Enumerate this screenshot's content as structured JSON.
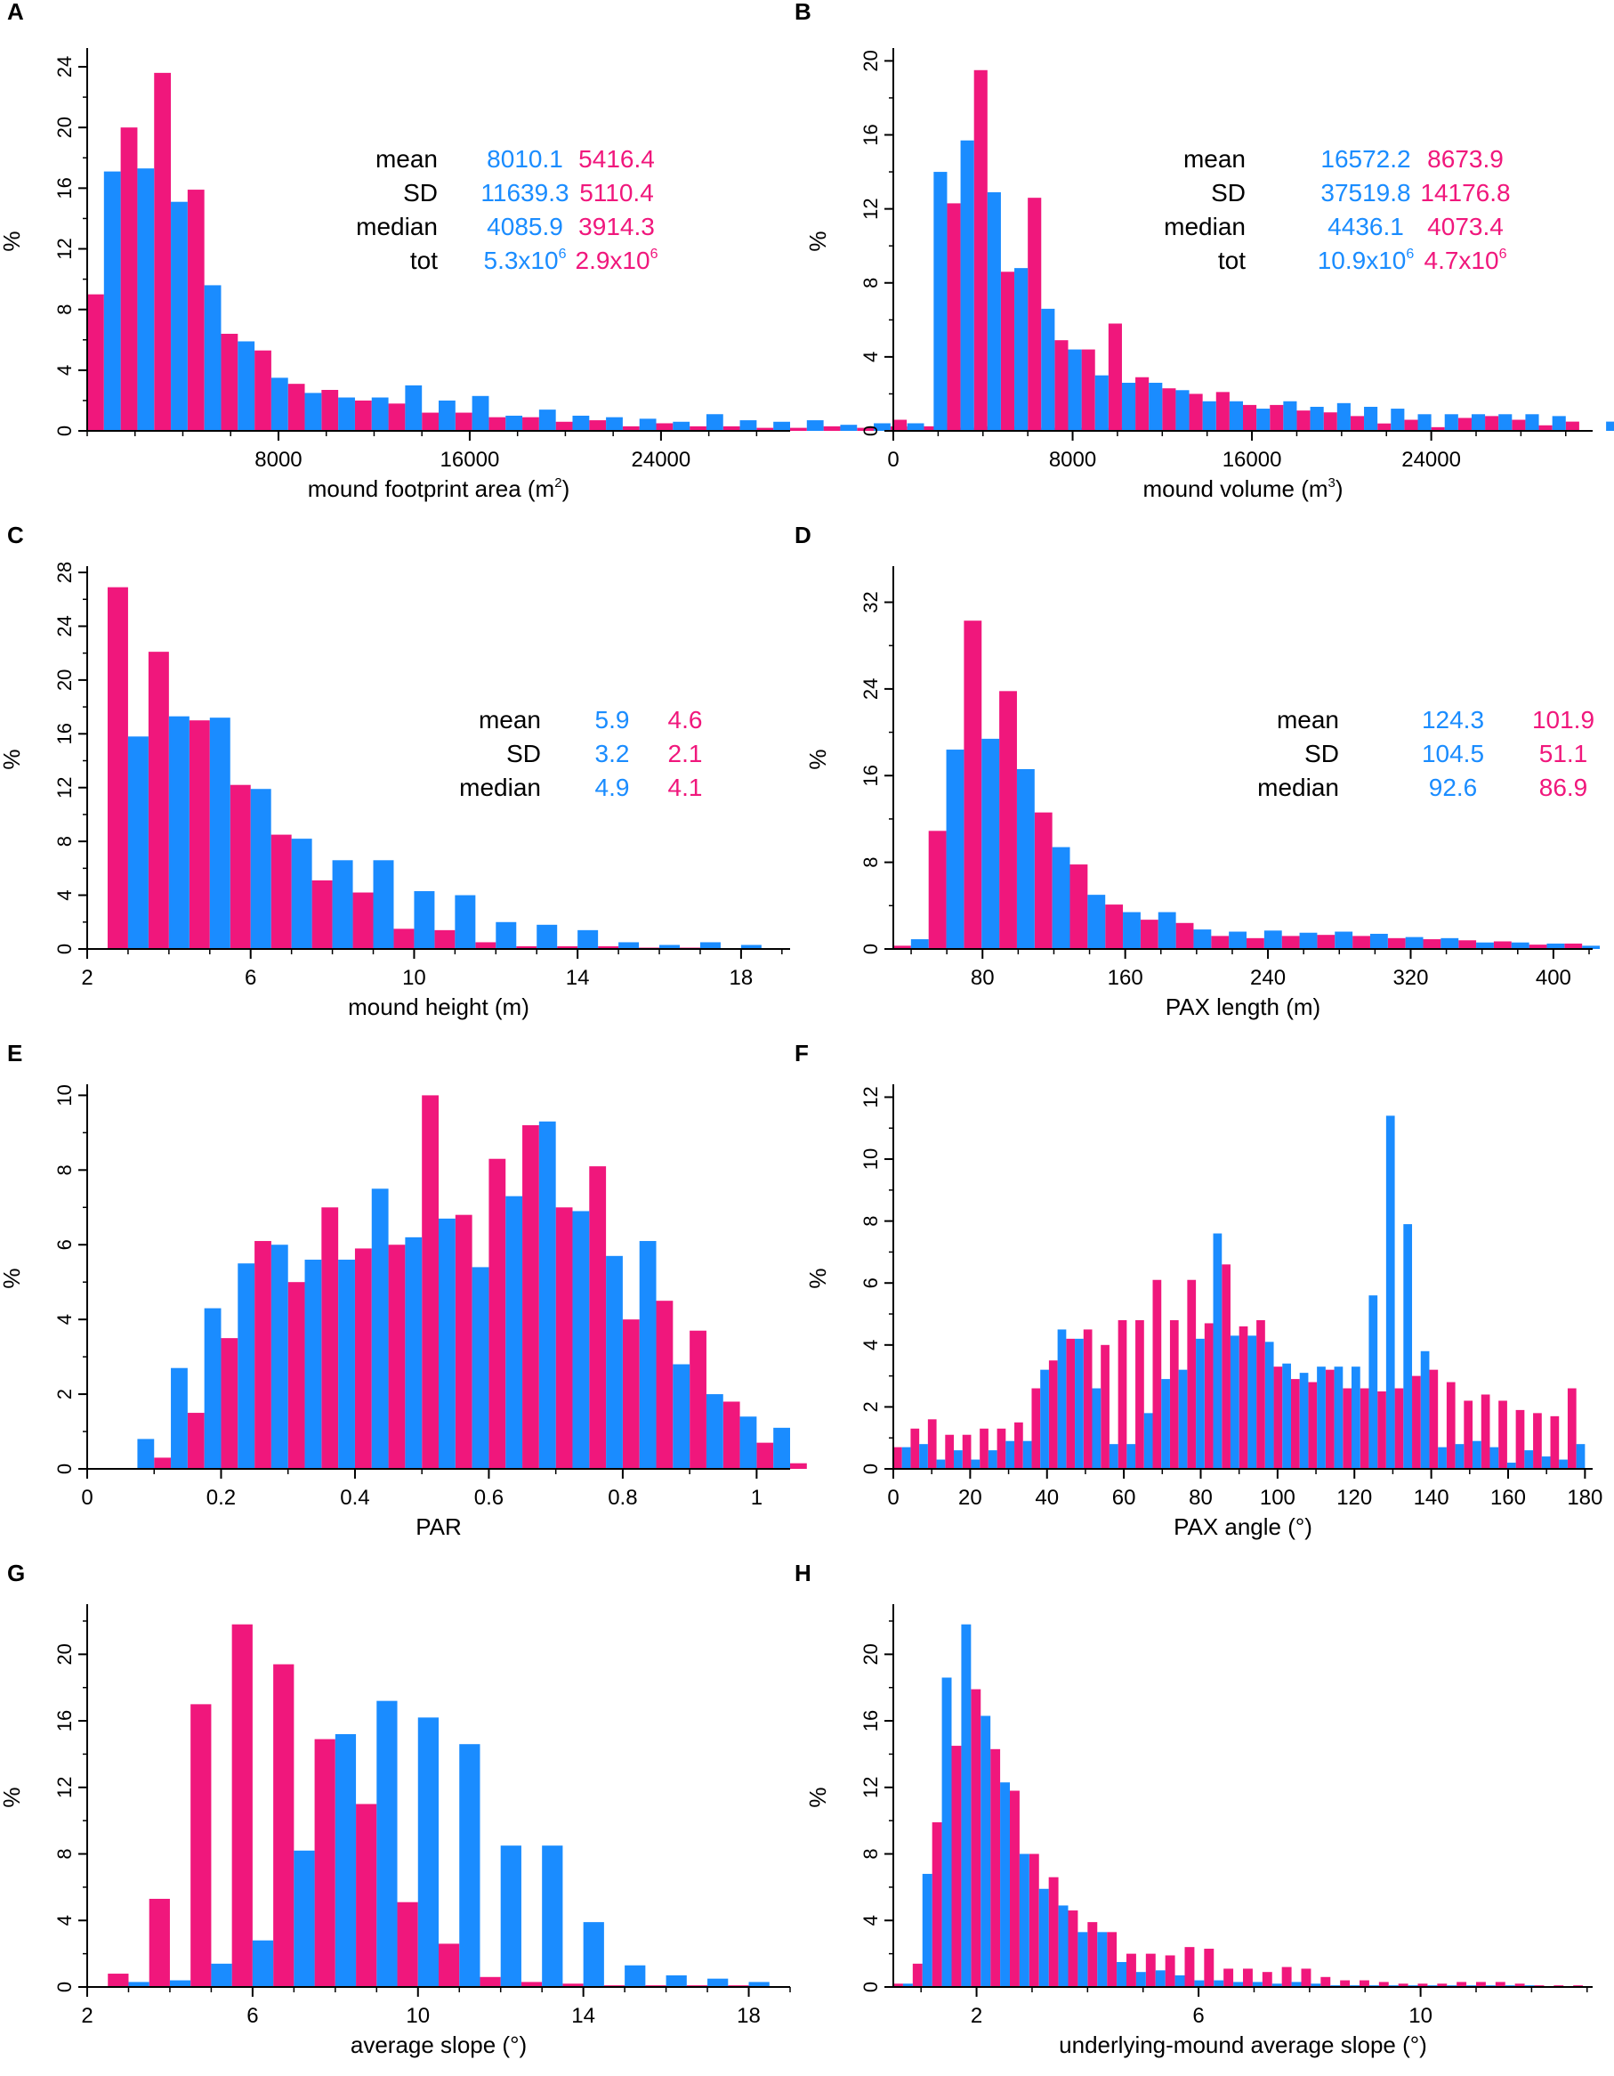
{
  "colors": {
    "blue": "#1a8cff",
    "pink": "#f0177c",
    "axis": "#000000"
  },
  "chart_data": [
    {
      "panel": "A",
      "type": "bar",
      "xlabel": "mound footprint area (m",
      "xlabel_sup": "2",
      "xlabel_end": ")",
      "ylabel": "%",
      "xlim": [
        0,
        29400
      ],
      "ylim": [
        0,
        25
      ],
      "xticks": [
        8000,
        16000,
        24000
      ],
      "xtick_labels": [
        "8000",
        "16000",
        "24000"
      ],
      "xminor": 2000,
      "yticks": [
        0,
        4,
        8,
        12,
        16,
        20,
        24
      ],
      "yminor": 2,
      "bin_start": 0,
      "bin_width": 1400,
      "series": [
        {
          "name": "pink",
          "color": "pink",
          "values": [
            9.0,
            20.0,
            23.6,
            15.9,
            6.4,
            5.3,
            3.1,
            2.7,
            2.0,
            1.8,
            1.2,
            1.2,
            0.9,
            0.9,
            0.6,
            0.7,
            0.3,
            0.5,
            0.3,
            0.3,
            0.2,
            0.2,
            0.3,
            0.2,
            0.3,
            0.3,
            0.2,
            0.1,
            0.1,
            0.1,
            0.1
          ]
        },
        {
          "name": "blue",
          "color": "blue",
          "values": [
            17.1,
            17.3,
            15.1,
            9.6,
            5.9,
            3.5,
            2.5,
            2.2,
            2.2,
            3.0,
            2.0,
            2.3,
            1.0,
            1.4,
            1.0,
            0.9,
            0.8,
            0.6,
            1.1,
            0.7,
            0.6,
            0.7,
            0.4,
            0.5,
            0.5,
            0.5,
            0.3,
            0.3,
            0.2,
            0.2,
            0.2
          ]
        }
      ],
      "stats": {
        "labels": [
          "mean",
          "SD",
          "median",
          "tot"
        ],
        "blue": [
          "8010.1",
          "11639.3",
          "4085.9",
          "5.3x10"
        ],
        "blue_sup": [
          "",
          "",
          "",
          "6"
        ],
        "pink": [
          "5416.4",
          "5110.4",
          "3914.3",
          "2.9x10"
        ],
        "pink_sup": [
          "",
          "",
          "",
          "6"
        ]
      }
    },
    {
      "panel": "B",
      "type": "bar",
      "xlabel": "mound volume (m",
      "xlabel_sup": "3",
      "xlabel_end": ")",
      "ylabel": "%",
      "xlim": [
        0,
        31200
      ],
      "ylim": [
        0,
        20.5
      ],
      "xticks": [
        0,
        8000,
        16000,
        24000
      ],
      "xtick_labels": [
        "0",
        "8000",
        "16000",
        "24000"
      ],
      "xminor": 2000,
      "yticks": [
        0,
        4,
        8,
        12,
        16,
        20
      ],
      "yminor": 2,
      "bin_start": 0,
      "bin_width": 1200,
      "series": [
        {
          "name": "pink",
          "color": "pink",
          "values": [
            0.6,
            0,
            12.3,
            19.5,
            8.6,
            12.6,
            4.9,
            4.4,
            5.8,
            2.9,
            2.3,
            2.0,
            2.1,
            1.4,
            1.4,
            1.1,
            1.0,
            0.8,
            0.4,
            0.6,
            0.2,
            0.7,
            0.8,
            0.6,
            0.3,
            0.5,
            0,
            0.3,
            0.5
          ]
        },
        {
          "name": "blue",
          "color": "blue",
          "values": [
            0,
            14.0,
            15.7,
            12.9,
            8.8,
            6.6,
            4.4,
            3.0,
            2.6,
            2.6,
            2.2,
            1.6,
            1.6,
            1.2,
            1.6,
            1.3,
            1.5,
            1.3,
            1.2,
            0.9,
            0.9,
            0.9,
            0.9,
            0.9,
            0.8,
            0,
            0.5,
            0.4,
            0.5
          ]
        }
      ],
      "stats": {
        "labels": [
          "mean",
          "SD",
          "median",
          "tot"
        ],
        "blue": [
          "16572.2",
          "37519.8",
          "4436.1",
          "10.9x10"
        ],
        "blue_sup": [
          "",
          "",
          "",
          "6"
        ],
        "pink": [
          "8673.9",
          "14176.8",
          "4073.4",
          "4.7x10"
        ],
        "pink_sup": [
          "",
          "",
          "",
          "6"
        ]
      }
    },
    {
      "panel": "C",
      "type": "bar",
      "xlabel": "mound height (m)",
      "ylabel": "%",
      "xlim": [
        2,
        19.2
      ],
      "ylim": [
        0,
        28.2
      ],
      "xticks": [
        2,
        6,
        10,
        14,
        18
      ],
      "xtick_labels": [
        "2",
        "6",
        "10",
        "14",
        "18"
      ],
      "xminor": 1,
      "yticks": [
        0,
        4,
        8,
        12,
        16,
        20,
        24,
        28
      ],
      "yminor": 2,
      "bin_start": 2.5,
      "bin_width": 1,
      "series": [
        {
          "name": "pink",
          "color": "pink",
          "values": [
            26.9,
            22.1,
            17.0,
            12.2,
            8.5,
            5.1,
            4.2,
            1.5,
            1.4,
            0.5,
            0.2,
            0.2,
            0.2,
            0.1,
            0.1,
            0.05
          ]
        },
        {
          "name": "blue",
          "color": "blue",
          "values": [
            15.8,
            17.3,
            17.2,
            11.9,
            8.2,
            6.6,
            6.6,
            4.3,
            4.0,
            2.0,
            1.8,
            1.4,
            0.5,
            0.3,
            0.5,
            0.3
          ]
        }
      ],
      "stats": {
        "labels": [
          "mean",
          "SD",
          "median"
        ],
        "blue": [
          "5.9",
          "3.2",
          "4.9"
        ],
        "pink": [
          "4.6",
          "2.1",
          "4.1"
        ]
      }
    },
    {
      "panel": "D",
      "type": "bar",
      "xlabel": "PAX length (m)",
      "ylabel": "%",
      "xlim": [
        30,
        422
      ],
      "ylim": [
        0,
        35
      ],
      "xticks": [
        80,
        160,
        240,
        320,
        400
      ],
      "xtick_labels": [
        "80",
        "160",
        "240",
        "320",
        "400"
      ],
      "xminor": 20,
      "yticks": [
        0,
        8,
        16,
        24,
        32
      ],
      "yminor": 4,
      "bin_start": 30,
      "bin_width": 19.8,
      "series": [
        {
          "name": "pink",
          "color": "pink",
          "values": [
            0.3,
            10.9,
            30.3,
            23.8,
            12.6,
            7.8,
            4.1,
            2.7,
            2.4,
            1.2,
            1.0,
            1.2,
            1.3,
            1.2,
            1.0,
            0.9,
            0.8,
            0.7,
            0.4,
            0.5
          ]
        },
        {
          "name": "blue",
          "color": "blue",
          "values": [
            0.9,
            18.4,
            19.4,
            16.6,
            9.4,
            5.0,
            3.4,
            3.4,
            1.8,
            1.6,
            1.7,
            1.5,
            1.6,
            1.4,
            1.1,
            1.0,
            0.6,
            0.6,
            0.5,
            0.3
          ]
        }
      ],
      "stats": {
        "labels": [
          "mean",
          "SD",
          "median"
        ],
        "blue": [
          "124.3",
          "104.5",
          "92.6"
        ],
        "pink": [
          "101.9",
          "51.1",
          "86.9"
        ]
      }
    },
    {
      "panel": "E",
      "type": "bar",
      "xlabel": "PAR",
      "ylabel": "%",
      "xlim": [
        0,
        1.05
      ],
      "ylim": [
        0,
        10.2
      ],
      "xticks": [
        0,
        0.2,
        0.4,
        0.6,
        0.8,
        1
      ],
      "xtick_labels": [
        "0",
        "0.2",
        "0.4",
        "0.6",
        "0.8",
        "1"
      ],
      "xminor": 0.1,
      "yticks": [
        0,
        2,
        4,
        6,
        8,
        10
      ],
      "yminor": 1,
      "bin_start": 0.05,
      "bin_width": 0.05,
      "series": [
        {
          "name": "pink",
          "color": "pink",
          "values": [
            0,
            0.3,
            1.5,
            3.5,
            6.1,
            5.0,
            7.0,
            5.9,
            6.0,
            10.0,
            6.8,
            8.3,
            9.2,
            7.0,
            8.1,
            4.0,
            4.5,
            3.7,
            1.8,
            0.7,
            0.15
          ]
        },
        {
          "name": "blue",
          "color": "blue",
          "values": [
            0.8,
            2.7,
            4.3,
            5.5,
            6.0,
            5.6,
            5.6,
            7.5,
            6.2,
            6.7,
            5.4,
            7.3,
            9.3,
            6.9,
            5.7,
            6.1,
            2.8,
            2.0,
            1.4,
            1.1,
            0
          ]
        }
      ]
    },
    {
      "panel": "F",
      "type": "bar",
      "xlabel": "PAX angle (°)",
      "ylabel": "%",
      "xlim": [
        0,
        182
      ],
      "ylim": [
        0,
        12.3
      ],
      "xticks": [
        0,
        20,
        40,
        60,
        80,
        100,
        120,
        140,
        160,
        180
      ],
      "xtick_labels": [
        "0",
        "20",
        "40",
        "60",
        "80",
        "100",
        "120",
        "140",
        "160",
        "180"
      ],
      "xminor": 10,
      "yticks": [
        0,
        2,
        4,
        6,
        8,
        10,
        12
      ],
      "yminor": 1,
      "bin_start": 0,
      "bin_width": 4.5,
      "series": [
        {
          "name": "pink",
          "color": "pink",
          "values": [
            0.7,
            1.3,
            1.6,
            1.1,
            1.1,
            1.3,
            1.3,
            1.5,
            2.6,
            3.5,
            4.2,
            4.5,
            4.0,
            4.8,
            4.8,
            6.1,
            4.8,
            6.1,
            4.7,
            6.6,
            4.6,
            4.8,
            3.3,
            2.9,
            2.8,
            3.2,
            2.6,
            2.6,
            2.5,
            2.6,
            3.0,
            3.2,
            2.8,
            2.2,
            2.4,
            2.2,
            1.9,
            1.8,
            1.7,
            2.6
          ]
        },
        {
          "name": "blue",
          "color": "blue",
          "values": [
            0.7,
            0.8,
            0.3,
            0.6,
            0.3,
            0.6,
            0.9,
            0.9,
            3.2,
            4.5,
            4.2,
            2.6,
            0.8,
            0.8,
            1.8,
            2.9,
            3.2,
            4.2,
            7.6,
            4.3,
            4.3,
            4.1,
            3.4,
            3.1,
            3.3,
            3.3,
            3.3,
            5.6,
            11.4,
            7.9,
            3.8,
            0.7,
            0.8,
            0.9,
            0.7,
            0.2,
            0.6,
            0.4,
            0.3,
            0.8
          ]
        }
      ]
    },
    {
      "panel": "G",
      "type": "bar",
      "xlabel": "average slope (°)",
      "ylabel": "%",
      "xlim": [
        2,
        19
      ],
      "ylim": [
        0,
        22.8
      ],
      "xticks": [
        2,
        6,
        10,
        14,
        18
      ],
      "xtick_labels": [
        "2",
        "6",
        "10",
        "14",
        "18"
      ],
      "xminor": 1,
      "yticks": [
        0,
        4,
        8,
        12,
        16,
        20
      ],
      "yminor": 2,
      "bin_start": 2.5,
      "bin_width": 1,
      "series": [
        {
          "name": "pink",
          "color": "pink",
          "values": [
            0.8,
            5.3,
            17.0,
            21.8,
            19.4,
            14.9,
            11.0,
            5.1,
            2.6,
            0.6,
            0.3,
            0.2,
            0.1,
            0.1,
            0.1,
            0.1
          ]
        },
        {
          "name": "blue",
          "color": "blue",
          "values": [
            0.3,
            0.4,
            1.4,
            2.8,
            8.2,
            15.2,
            17.2,
            16.2,
            14.6,
            8.5,
            8.5,
            3.9,
            1.3,
            0.7,
            0.5,
            0.3
          ]
        }
      ]
    },
    {
      "panel": "H",
      "type": "bar",
      "xlabel": "underlying-mound average slope (°)",
      "ylabel": "%",
      "xlim": [
        0.5,
        13.1
      ],
      "ylim": [
        0,
        22.8
      ],
      "xticks": [
        2,
        6,
        10
      ],
      "xtick_labels": [
        "2",
        "6",
        "10"
      ],
      "xminor": 1,
      "yticks": [
        0,
        4,
        8,
        12,
        16,
        20
      ],
      "yminor": 2,
      "bin_start": 0.5,
      "bin_width": 0.35,
      "series": [
        {
          "name": "pink",
          "color": "pink",
          "values": [
            0.2,
            1.4,
            9.9,
            14.5,
            17.9,
            14.3,
            11.8,
            8.0,
            6.6,
            4.6,
            3.9,
            3.3,
            2.0,
            2.0,
            1.9,
            2.4,
            2.3,
            1.1,
            1.1,
            0.9,
            1.2,
            1.1,
            0.6,
            0.4,
            0.4,
            0.3,
            0.2,
            0.2,
            0.2,
            0.3,
            0.3,
            0.3,
            0.2,
            0.1,
            0.1,
            0.1
          ]
        },
        {
          "name": "blue",
          "color": "blue",
          "values": [
            0.2,
            6.8,
            18.6,
            21.8,
            16.3,
            12.3,
            8.0,
            5.9,
            4.9,
            3.3,
            3.3,
            1.5,
            0.9,
            1.0,
            0.7,
            0.4,
            0.4,
            0.3,
            0.3,
            0.2,
            0.3,
            0.2,
            0.1,
            0.1,
            0.1,
            0.1,
            0.1,
            0.1,
            0.1,
            0.1,
            0.1,
            0.1,
            0.1,
            0.0,
            0.0,
            0.0
          ]
        }
      ]
    }
  ]
}
